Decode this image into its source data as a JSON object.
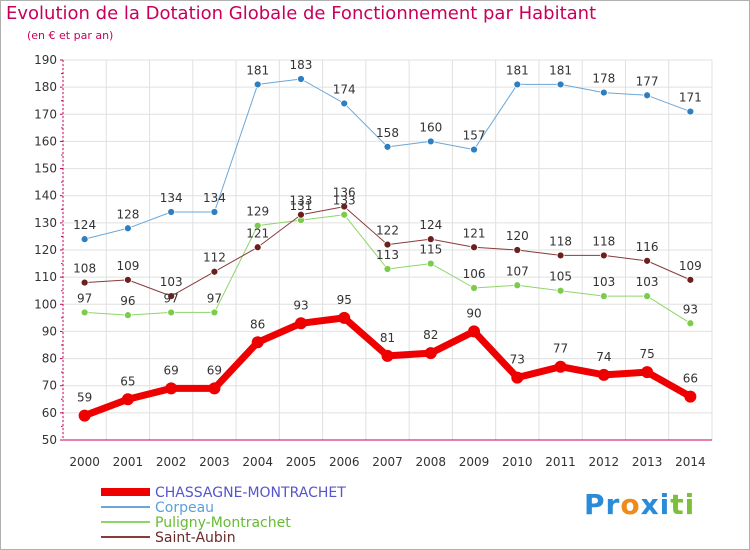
{
  "header": {
    "title": "Evolution de la Dotation Globale de Fonctionnement par Habitant",
    "subtitle": "(en € et par an)"
  },
  "brand": {
    "letters": [
      {
        "ch": "P",
        "color": "#2a8bd8"
      },
      {
        "ch": "r",
        "color": "#2a8bd8"
      },
      {
        "ch": "o",
        "color": "#f08a1c"
      },
      {
        "ch": "x",
        "color": "#2a8bd8"
      },
      {
        "ch": "i",
        "color": "#2a8bd8"
      },
      {
        "ch": "t",
        "color": "#7bbf3a"
      },
      {
        "ch": "i",
        "color": "#7bbf3a"
      }
    ]
  },
  "chart_data": {
    "type": "line",
    "title": "Evolution de la Dotation Globale de Fonctionnement par Habitant",
    "subtitle": "(en € et par an)",
    "x": [
      2000,
      2001,
      2002,
      2003,
      2004,
      2005,
      2006,
      2007,
      2008,
      2009,
      2010,
      2011,
      2012,
      2013,
      2014
    ],
    "ylim": [
      50,
      190
    ],
    "yticks": [
      50,
      60,
      70,
      80,
      90,
      100,
      110,
      120,
      130,
      140,
      150,
      160,
      170,
      180,
      190
    ],
    "grid": true,
    "legend": "bottom-left",
    "series": [
      {
        "name": "CHASSAGNE-MONTRACHET",
        "color": "#ee0000",
        "markerColor": "#ee0000",
        "width": 7,
        "legendColor": "#5555cc",
        "values": [
          59,
          65,
          69,
          69,
          86,
          93,
          95,
          81,
          82,
          90,
          73,
          77,
          74,
          75,
          66
        ]
      },
      {
        "name": "Corpeau",
        "color": "#6aa7d8",
        "markerColor": "#2f7fc0",
        "width": 1,
        "legendColor": "#5aa0d8",
        "values": [
          124,
          128,
          134,
          134,
          181,
          183,
          174,
          158,
          160,
          157,
          181,
          181,
          178,
          177,
          171
        ]
      },
      {
        "name": "Puligny-Montrachet",
        "color": "#8fd46a",
        "markerColor": "#7ccc4c",
        "width": 1,
        "legendColor": "#66bb33",
        "values": [
          97,
          96,
          97,
          97,
          129,
          131,
          133,
          113,
          115,
          106,
          107,
          105,
          103,
          103,
          93
        ]
      },
      {
        "name": "Saint-Aubin",
        "color": "#8a3a3a",
        "markerColor": "#6b1f1f",
        "width": 1,
        "legendColor": "#6b2a2a",
        "values": [
          108,
          109,
          103,
          112,
          121,
          133,
          136,
          122,
          124,
          121,
          120,
          118,
          118,
          116,
          109
        ]
      }
    ]
  }
}
